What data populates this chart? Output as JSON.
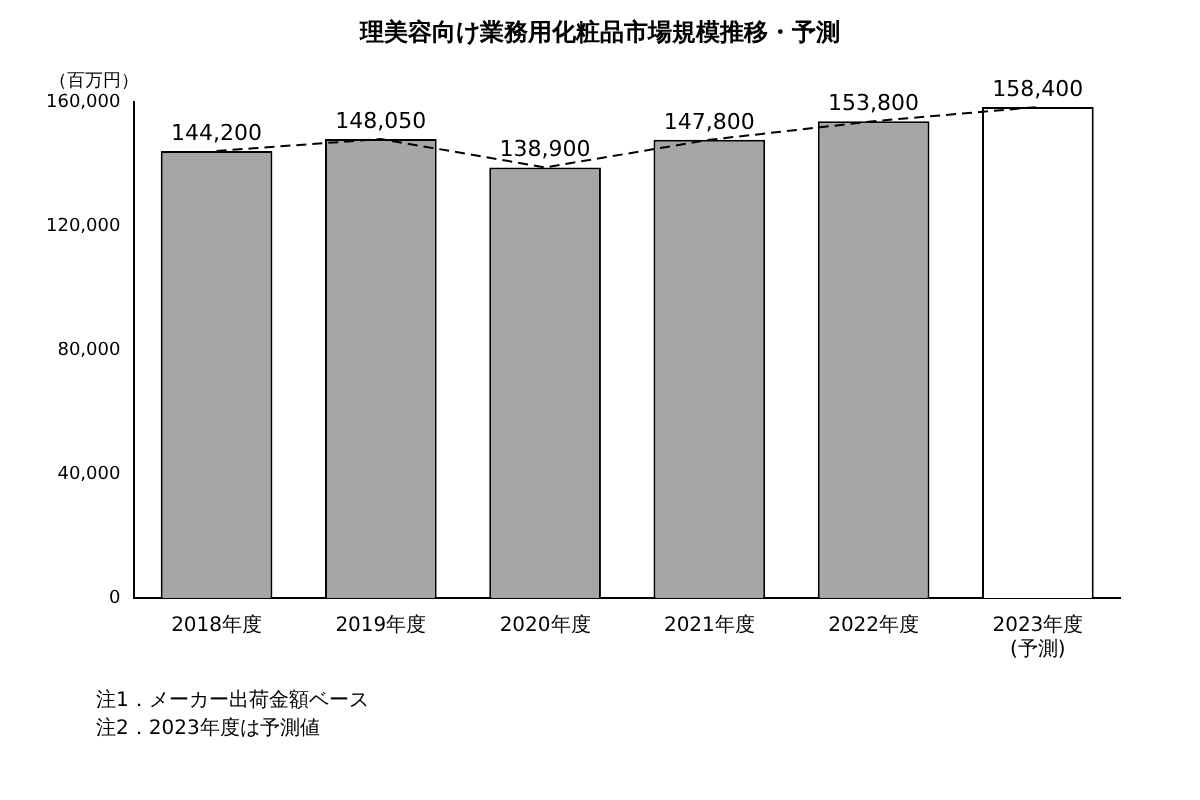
{
  "chart_data": {
    "type": "bar",
    "title": "理美容向け業務用化粧品市場規模推移・予測",
    "ylabel": "（百万円）",
    "categories": [
      "2018年度",
      "2019年度",
      "2020年度",
      "2021年度",
      "2022年度",
      "2023年度\n(予測)"
    ],
    "series": [
      {
        "colors": [
          "#a6a6a6",
          "#a6a6a6",
          "#a6a6a6",
          "#a6a6a6",
          "#a6a6a6",
          "#ffffff"
        ],
        "values": [
          144200,
          148050,
          138900,
          147800,
          153800,
          158400
        ],
        "value_labels": [
          "144,200",
          "148,050",
          "138,900",
          "147,800",
          "153,800",
          "158,400"
        ]
      },
      {
        "type": "line",
        "color": "#000000",
        "line_style": "dashed",
        "marker": "none",
        "values": [
          144200,
          148050,
          138900,
          147800,
          153800,
          158400
        ]
      }
    ],
    "ylim": [
      0,
      160000
    ],
    "yticks": [
      0,
      {
        "value": 40000,
        "label": "40,000"
      },
      {
        "value": 80000,
        "label": "80,000"
      },
      {
        "value": 120000,
        "label": "120,000"
      },
      {
        "value": 160000,
        "label": "160,000"
      }
    ],
    "grid": false,
    "legend": false,
    "annotations": [
      "注1．メーカー出荷金額ベース",
      "注2．2023年度は予測値"
    ]
  }
}
